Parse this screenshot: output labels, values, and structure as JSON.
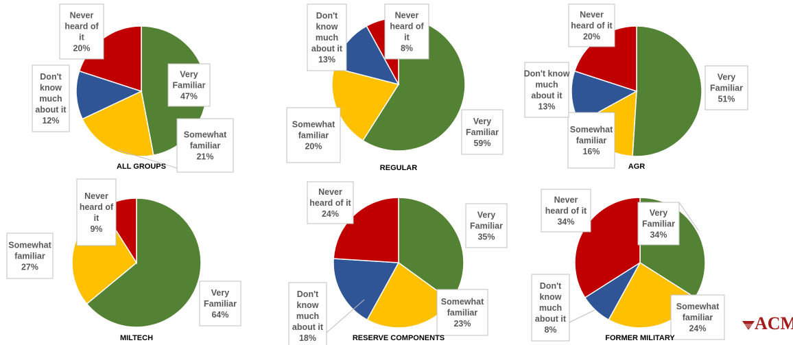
{
  "colors": {
    "very_familiar": "#548235",
    "somewhat_familiar": "#ffc000",
    "dont_know": "#2f5597",
    "never_heard": "#c00000",
    "label_border": "#bfbfbf",
    "label_text": "#595959",
    "logo": "#a31b1b"
  },
  "logo": {
    "text": "ACMC"
  },
  "chart_data": [
    {
      "type": "pie",
      "title": "ALL GROUPS",
      "slices": [
        {
          "name": "Very Familiar",
          "value": 47,
          "label": [
            "Very",
            "Familiar",
            "47%"
          ],
          "color_key": "very_familiar"
        },
        {
          "name": "Somewhat familiar",
          "value": 21,
          "label": [
            "Somewhat",
            "familiar",
            "21%"
          ],
          "color_key": "somewhat_familiar"
        },
        {
          "name": "Don't know much about it",
          "value": 12,
          "label": [
            "Don't",
            "know",
            "much",
            "about it",
            "12%"
          ],
          "color_key": "dont_know"
        },
        {
          "name": "Never heard of it",
          "value": 20,
          "label": [
            "Never",
            "heard of",
            "it",
            "20%"
          ],
          "color_key": "never_heard"
        }
      ]
    },
    {
      "type": "pie",
      "title": "REGULAR",
      "slices": [
        {
          "name": "Very Familiar",
          "value": 59,
          "label": [
            "Very",
            "Familiar",
            "59%"
          ],
          "color_key": "very_familiar"
        },
        {
          "name": "Somewhat familiar",
          "value": 20,
          "label": [
            "Somewhat",
            "familiar",
            "20%"
          ],
          "color_key": "somewhat_familiar"
        },
        {
          "name": "Don't know much about it",
          "value": 13,
          "label": [
            "Don't",
            "know",
            "much",
            "about it",
            "13%"
          ],
          "color_key": "dont_know"
        },
        {
          "name": "Never heard of it",
          "value": 8,
          "label": [
            "Never",
            "heard of",
            "it",
            "8%"
          ],
          "color_key": "never_heard"
        }
      ]
    },
    {
      "type": "pie",
      "title": "AGR",
      "slices": [
        {
          "name": "Very Familiar",
          "value": 51,
          "label": [
            "Very",
            "Familiar",
            "51%"
          ],
          "color_key": "very_familiar"
        },
        {
          "name": "Somewhat familiar",
          "value": 16,
          "label": [
            "Somewhat",
            "familiar",
            "16%"
          ],
          "color_key": "somewhat_familiar"
        },
        {
          "name": "Don't know much about it",
          "value": 13,
          "label": [
            "Don't know",
            "much",
            "about it",
            "13%"
          ],
          "color_key": "dont_know"
        },
        {
          "name": "Never heard of it",
          "value": 20,
          "label": [
            "Never",
            "heard of it",
            "20%"
          ],
          "color_key": "never_heard"
        }
      ]
    },
    {
      "type": "pie",
      "title": "MILTECH",
      "slices": [
        {
          "name": "Very Familiar",
          "value": 64,
          "label": [
            "Very",
            "Familiar",
            "64%"
          ],
          "color_key": "very_familiar"
        },
        {
          "name": "Somewhat familiar",
          "value": 27,
          "label": [
            "Somewhat",
            "familiar",
            "27%"
          ],
          "color_key": "somewhat_familiar"
        },
        {
          "name": "Never heard of it",
          "value": 9,
          "label": [
            "Never",
            "heard of",
            "it",
            "9%"
          ],
          "color_key": "never_heard"
        }
      ]
    },
    {
      "type": "pie",
      "title": "RESERVE COMPONENTS",
      "slices": [
        {
          "name": "Very Familiar",
          "value": 35,
          "label": [
            "Very",
            "Familiar",
            "35%"
          ],
          "color_key": "very_familiar"
        },
        {
          "name": "Somewhat familiar",
          "value": 23,
          "label": [
            "Somewhat",
            "familiar",
            "23%"
          ],
          "color_key": "somewhat_familiar"
        },
        {
          "name": "Don't know much about it",
          "value": 18,
          "label": [
            "Don't",
            "know",
            "much",
            "about it",
            "18%"
          ],
          "color_key": "dont_know"
        },
        {
          "name": "Never heard of it",
          "value": 24,
          "label": [
            "Never",
            "heard of it",
            "24%"
          ],
          "color_key": "never_heard"
        }
      ]
    },
    {
      "type": "pie",
      "title": "FORMER MILITARY",
      "slices": [
        {
          "name": "Very Familiar",
          "value": 34,
          "label": [
            "Very",
            "Familiar",
            "34%"
          ],
          "color_key": "very_familiar"
        },
        {
          "name": "Somewhat familiar",
          "value": 24,
          "label": [
            "Somewhat",
            "familiar",
            "24%"
          ],
          "color_key": "somewhat_familiar"
        },
        {
          "name": "Don't know much about it",
          "value": 8,
          "label": [
            "Don't",
            "know",
            "much",
            "about it",
            "8%"
          ],
          "color_key": "dont_know"
        },
        {
          "name": "Never heard of it",
          "value": 34,
          "label": [
            "Never",
            "heard of it",
            "34%"
          ],
          "color_key": "never_heard"
        }
      ]
    }
  ]
}
